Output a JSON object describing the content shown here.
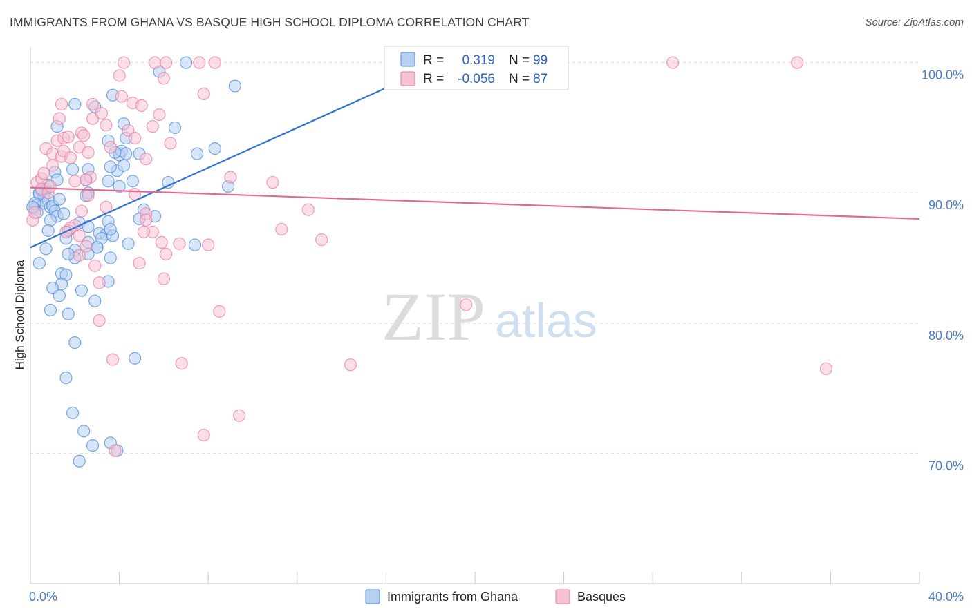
{
  "title": "IMMIGRANTS FROM GHANA VS BASQUE HIGH SCHOOL DIPLOMA CORRELATION CHART",
  "source": "Source: ZipAtlas.com",
  "watermark": {
    "zip": "ZIP",
    "atlas": "atlas"
  },
  "legend": {
    "r_label": "R =",
    "n_label": "N =",
    "rows": [
      {
        "r": "0.319",
        "n": "99",
        "color": "#4f8ad8",
        "fill": "#b7d0f2"
      },
      {
        "r": "-0.056",
        "n": "87",
        "color": "#e77ea0",
        "fill": "#f7c3d3"
      }
    ]
  },
  "chart_data": {
    "type": "scatter",
    "title": "IMMIGRANTS FROM GHANA VS BASQUE HIGH SCHOOL DIPLOMA CORRELATION CHART",
    "xlabel": "",
    "ylabel": "High School Diploma",
    "xlim": [
      0,
      40
    ],
    "ylim": [
      60,
      101.2
    ],
    "x_tick_labels": [
      "0.0%",
      "40.0%"
    ],
    "y_ticks": [
      {
        "value": 100,
        "label": "100.0%"
      },
      {
        "value": 90,
        "label": "90.0%"
      },
      {
        "value": 80,
        "label": "80.0%"
      },
      {
        "value": 70,
        "label": "70.0%"
      }
    ],
    "grid": "horizontal dashed",
    "legend_position": "top-center",
    "series": [
      {
        "name": "Immigrants from Ghana",
        "color": "#4f8ad8",
        "fill": "#b7d0f2",
        "trend": {
          "x0": 0,
          "y0": 85.8,
          "x1": 18.8,
          "y1": 100.2
        },
        "points": [
          [
            0.3,
            89.1
          ],
          [
            0.2,
            88.8
          ],
          [
            0.4,
            90.0
          ],
          [
            0.5,
            90.2
          ],
          [
            0.7,
            90.3
          ],
          [
            0.6,
            89.8
          ],
          [
            0.3,
            88.5
          ],
          [
            0.8,
            89.5
          ],
          [
            0.6,
            89.2
          ],
          [
            0.9,
            88.9
          ],
          [
            1.0,
            89.0
          ],
          [
            1.1,
            88.6
          ],
          [
            1.2,
            88.2
          ],
          [
            1.3,
            89.5
          ],
          [
            0.9,
            87.9
          ],
          [
            1.5,
            88.4
          ],
          [
            0.8,
            87.1
          ],
          [
            1.6,
            86.5
          ],
          [
            0.7,
            85.7
          ],
          [
            2.0,
            85.6
          ],
          [
            2.6,
            86.2
          ],
          [
            3.1,
            86.9
          ],
          [
            3.4,
            86.8
          ],
          [
            3.0,
            85.8
          ],
          [
            3.2,
            86.5
          ],
          [
            3.6,
            85.0
          ],
          [
            3.7,
            86.7
          ],
          [
            2.0,
            85.0
          ],
          [
            1.7,
            85.3
          ],
          [
            0.4,
            84.6
          ],
          [
            1.4,
            83.8
          ],
          [
            1.6,
            83.7
          ],
          [
            1.4,
            83.0
          ],
          [
            1.0,
            82.7
          ],
          [
            2.3,
            82.5
          ],
          [
            1.3,
            82.1
          ],
          [
            2.9,
            81.7
          ],
          [
            0.9,
            81.0
          ],
          [
            1.7,
            80.7
          ],
          [
            3.5,
            83.2
          ],
          [
            2.0,
            78.5
          ],
          [
            1.6,
            75.8
          ],
          [
            4.7,
            77.3
          ],
          [
            1.9,
            73.1
          ],
          [
            2.4,
            71.7
          ],
          [
            2.8,
            70.6
          ],
          [
            3.6,
            70.8
          ],
          [
            3.9,
            70.2
          ],
          [
            2.2,
            69.4
          ],
          [
            1.1,
            91.6
          ],
          [
            2.6,
            91.8
          ],
          [
            1.9,
            91.8
          ],
          [
            2.5,
            91.0
          ],
          [
            3.9,
            91.7
          ],
          [
            3.5,
            90.9
          ],
          [
            4.6,
            90.9
          ],
          [
            4.0,
            90.5
          ],
          [
            6.2,
            90.8
          ],
          [
            2.6,
            90.0
          ],
          [
            2.5,
            89.8
          ],
          [
            3.6,
            92.0
          ],
          [
            4.2,
            92.1
          ],
          [
            4.0,
            92.9
          ],
          [
            4.1,
            93.2
          ],
          [
            4.3,
            93.0
          ],
          [
            3.8,
            93.1
          ],
          [
            4.9,
            93.0
          ],
          [
            7.5,
            93.0
          ],
          [
            8.3,
            93.4
          ],
          [
            3.5,
            94.0
          ],
          [
            4.3,
            94.2
          ],
          [
            6.5,
            95.0
          ],
          [
            4.2,
            95.3
          ],
          [
            1.2,
            95.1
          ],
          [
            2.0,
            96.8
          ],
          [
            2.9,
            96.6
          ],
          [
            3.7,
            97.5
          ],
          [
            5.8,
            99.3
          ],
          [
            7.0,
            100.0
          ],
          [
            9.2,
            98.2
          ],
          [
            8.9,
            90.5
          ],
          [
            5.1,
            88.7
          ],
          [
            5.6,
            88.2
          ],
          [
            4.9,
            88.0
          ],
          [
            3.5,
            87.8
          ],
          [
            2.2,
            87.7
          ],
          [
            2.6,
            87.4
          ],
          [
            3.6,
            87.2
          ],
          [
            1.7,
            87.1
          ],
          [
            4.4,
            86.1
          ],
          [
            7.4,
            86.0
          ],
          [
            3.0,
            85.8
          ],
          [
            2.6,
            85.3
          ],
          [
            1.2,
            91.0
          ],
          [
            0.8,
            90.6
          ],
          [
            0.5,
            90.2
          ],
          [
            0.4,
            89.9
          ],
          [
            0.2,
            89.2
          ],
          [
            0.1,
            88.9
          ]
        ]
      },
      {
        "name": "Basques",
        "color": "#e77ea0",
        "fill": "#f7c3d3",
        "trend": {
          "x0": 0,
          "y0": 90.4,
          "x1": 40,
          "y1": 88.0
        },
        "points": [
          [
            0.1,
            87.9
          ],
          [
            0.2,
            88.5
          ],
          [
            0.3,
            90.8
          ],
          [
            0.5,
            91.1
          ],
          [
            0.6,
            91.5
          ],
          [
            0.5,
            90.3
          ],
          [
            0.8,
            90.0
          ],
          [
            0.9,
            90.5
          ],
          [
            1.0,
            92.1
          ],
          [
            0.7,
            93.4
          ],
          [
            1.2,
            94.0
          ],
          [
            1.0,
            93.0
          ],
          [
            1.4,
            92.8
          ],
          [
            1.5,
            93.2
          ],
          [
            1.3,
            95.7
          ],
          [
            1.4,
            96.8
          ],
          [
            1.5,
            94.2
          ],
          [
            1.7,
            94.3
          ],
          [
            1.8,
            92.7
          ],
          [
            2.2,
            93.5
          ],
          [
            2.3,
            94.6
          ],
          [
            2.4,
            94.4
          ],
          [
            2.6,
            93.1
          ],
          [
            2.7,
            91.2
          ],
          [
            2.5,
            91.0
          ],
          [
            2.0,
            90.9
          ],
          [
            2.6,
            89.8
          ],
          [
            2.3,
            88.6
          ],
          [
            2.0,
            87.5
          ],
          [
            1.8,
            87.3
          ],
          [
            1.6,
            87.0
          ],
          [
            2.2,
            86.7
          ],
          [
            2.5,
            85.9
          ],
          [
            2.2,
            85.2
          ],
          [
            2.9,
            84.4
          ],
          [
            3.1,
            83.1
          ],
          [
            3.1,
            80.2
          ],
          [
            3.4,
            88.9
          ],
          [
            2.8,
            96.8
          ],
          [
            2.8,
            95.7
          ],
          [
            3.2,
            96.1
          ],
          [
            3.4,
            95.2
          ],
          [
            3.6,
            93.5
          ],
          [
            4.0,
            99.0
          ],
          [
            4.1,
            97.4
          ],
          [
            4.6,
            96.9
          ],
          [
            5.0,
            96.7
          ],
          [
            4.4,
            94.8
          ],
          [
            4.7,
            94.2
          ],
          [
            5.2,
            92.6
          ],
          [
            4.7,
            89.9
          ],
          [
            5.2,
            88.4
          ],
          [
            5.2,
            87.9
          ],
          [
            5.5,
            87.0
          ],
          [
            5.1,
            87.0
          ],
          [
            5.9,
            86.2
          ],
          [
            6.1,
            85.3
          ],
          [
            6.0,
            83.4
          ],
          [
            4.9,
            84.6
          ],
          [
            5.5,
            95.1
          ],
          [
            5.8,
            96.0
          ],
          [
            6.3,
            93.8
          ],
          [
            6.0,
            98.8
          ],
          [
            4.2,
            100.0
          ],
          [
            5.6,
            100.0
          ],
          [
            6.1,
            100.0
          ],
          [
            7.6,
            100.0
          ],
          [
            8.3,
            100.0
          ],
          [
            7.8,
            97.6
          ],
          [
            6.7,
            86.1
          ],
          [
            8.0,
            86.0
          ],
          [
            8.5,
            80.9
          ],
          [
            9.0,
            91.2
          ],
          [
            10.9,
            90.8
          ],
          [
            11.3,
            87.2
          ],
          [
            12.5,
            88.7
          ],
          [
            13.1,
            86.4
          ],
          [
            14.4,
            76.8
          ],
          [
            19.6,
            81.4
          ],
          [
            28.9,
            100.0
          ],
          [
            34.5,
            100.0
          ],
          [
            35.8,
            76.5
          ],
          [
            9.4,
            72.9
          ],
          [
            7.8,
            71.4
          ],
          [
            3.8,
            70.2
          ],
          [
            3.7,
            77.2
          ],
          [
            6.8,
            76.9
          ]
        ]
      }
    ]
  },
  "bottom_legend": [
    {
      "label": "Immigrants from Ghana",
      "color": "#4f8ad8",
      "fill": "#b7d0f2"
    },
    {
      "label": "Basques",
      "color": "#e77ea0",
      "fill": "#f7c3d3"
    }
  ]
}
